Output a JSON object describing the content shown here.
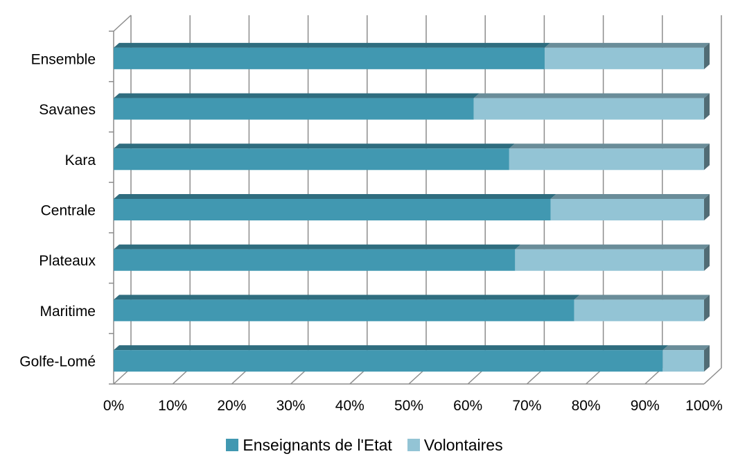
{
  "chart_data": {
    "type": "bar",
    "orientation": "horizontal",
    "stacked": "percent",
    "three_d": true,
    "categories": [
      "Golfe-Lomé",
      "Maritime",
      "Plateaux",
      "Centrale",
      "Kara",
      "Savanes",
      "Ensemble"
    ],
    "series": [
      {
        "name": "Enseignants de l'Etat",
        "color": "#4198B1",
        "values": [
          93,
          78,
          68,
          74,
          67,
          61,
          73
        ]
      },
      {
        "name": "Volontaires",
        "color": "#93C4D5",
        "values": [
          7,
          22,
          32,
          26,
          33,
          39,
          27
        ]
      }
    ],
    "x_ticks": [
      "0%",
      "10%",
      "20%",
      "30%",
      "40%",
      "50%",
      "60%",
      "70%",
      "80%",
      "90%",
      "100%"
    ],
    "xlim": [
      0,
      100
    ],
    "grid": true,
    "legend_position": "bottom"
  }
}
